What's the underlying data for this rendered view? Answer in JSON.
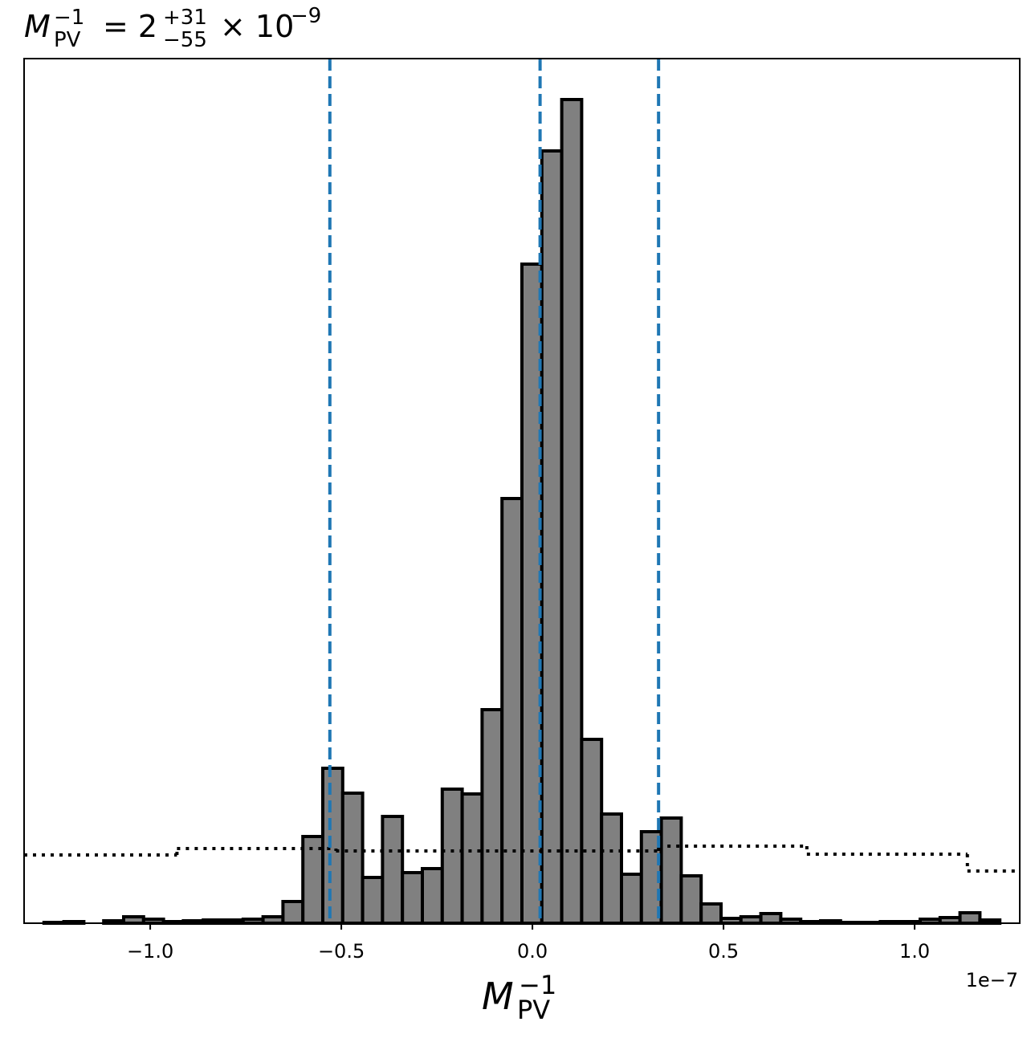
{
  "chart_data": {
    "type": "histogram",
    "title": {
      "symbol": "M",
      "symbol_sup": "−1",
      "symbol_sub": "PV",
      "value": "= 2",
      "plus": "+31",
      "minus": "−55",
      "times": "× 10",
      "exponent": "−9"
    },
    "x_label": {
      "symbol": "M",
      "symbol_sup": "−1",
      "symbol_sub": "PV"
    },
    "x_offset_label": "1e−7",
    "bins": [
      -1.33,
      -1.2779,
      -1.2258,
      -1.1737,
      -1.1216,
      -1.0695,
      -1.0174,
      -0.9653,
      -0.9132,
      -0.8611,
      -0.809,
      -0.7569,
      -0.7048,
      -0.6527,
      -0.6006,
      -0.5485,
      -0.4964,
      -0.4443,
      -0.3922,
      -0.3401,
      -0.288,
      -0.2359,
      -0.1838,
      -0.1317,
      -0.0796,
      -0.0275,
      0.0246,
      0.0767,
      0.1288,
      0.1809,
      0.233,
      0.2851,
      0.3372,
      0.3893,
      0.4414,
      0.4935,
      0.5456,
      0.5977,
      0.6498,
      0.7019,
      0.754,
      0.8061,
      0.8582,
      0.9103,
      0.9624,
      1.0145,
      1.0666,
      1.1187,
      1.1708,
      1.2229,
      1.275
    ],
    "values": [
      0,
      1,
      2,
      0,
      3,
      8,
      5,
      2,
      3,
      4,
      4,
      5,
      8,
      27,
      108,
      193,
      162,
      57,
      133,
      63,
      68,
      167,
      161,
      266,
      529,
      821,
      962,
      1026,
      229,
      136,
      61,
      114,
      131,
      59,
      24,
      6,
      8,
      12,
      5,
      2,
      3,
      1,
      1,
      2,
      2,
      5,
      7,
      13,
      4,
      0
    ],
    "color": "#808080",
    "edge_color": "#000000",
    "prior": {
      "bins": [
        -1.33,
        -0.93,
        -0.514,
        0.33,
        0.718,
        1.138,
        1.275
      ],
      "values": [
        85,
        93,
        90,
        96,
        86,
        65
      ],
      "color": "#000000"
    },
    "vlines": [
      -0.53,
      0.02,
      0.33
    ],
    "vline_color": "#1f77b4",
    "xlim": [
      -1.33,
      1.275
    ],
    "xticks": [
      {
        "value": -1.0,
        "label": "−1.0"
      },
      {
        "value": -0.5,
        "label": "−0.5"
      },
      {
        "value": 0.0,
        "label": "0.0"
      },
      {
        "value": 0.5,
        "label": "0.5"
      },
      {
        "value": 1.0,
        "label": "1.0"
      }
    ],
    "ylim": [
      0,
      1077
    ]
  }
}
